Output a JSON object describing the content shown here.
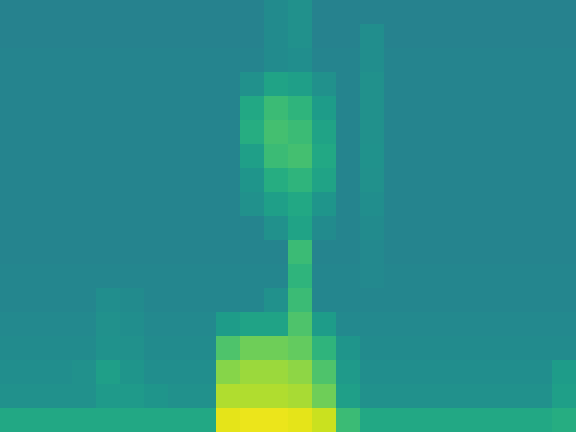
{
  "chart_data": {
    "type": "heatmap",
    "color": "viridis",
    "tick_labels": false,
    "zlim": [
      0,
      10
    ],
    "z": [
      [
        4.4,
        4.4,
        4.4,
        4.4,
        4.4,
        4.4,
        4.4,
        4.4,
        4.4,
        4.4,
        4.4,
        4.8,
        5.0,
        4.4,
        4.4,
        4.4,
        4.4,
        4.4,
        4.4,
        4.4,
        4.4,
        4.4,
        4.4,
        4.4
      ],
      [
        4.4,
        4.4,
        4.4,
        4.4,
        4.4,
        4.4,
        4.4,
        4.4,
        4.4,
        4.4,
        4.4,
        4.8,
        5.0,
        4.4,
        4.4,
        4.9,
        4.4,
        4.4,
        4.4,
        4.4,
        4.4,
        4.4,
        4.4,
        4.4
      ],
      [
        4.5,
        4.5,
        4.5,
        4.5,
        4.5,
        4.5,
        4.5,
        4.5,
        4.5,
        4.5,
        4.5,
        4.8,
        4.9,
        4.5,
        4.5,
        4.9,
        4.5,
        4.5,
        4.5,
        4.5,
        4.5,
        4.5,
        4.5,
        4.5
      ],
      [
        4.5,
        4.5,
        4.5,
        4.5,
        4.5,
        4.5,
        4.5,
        4.5,
        4.5,
        4.5,
        5.0,
        5.8,
        5.6,
        5.0,
        4.5,
        5.0,
        4.5,
        4.5,
        4.5,
        4.5,
        4.5,
        4.5,
        4.5,
        4.5
      ],
      [
        4.5,
        4.5,
        4.5,
        4.5,
        4.5,
        4.5,
        4.5,
        4.5,
        4.5,
        4.5,
        6.0,
        6.8,
        6.5,
        5.5,
        4.5,
        5.0,
        4.5,
        4.5,
        4.5,
        4.5,
        4.5,
        4.5,
        4.5,
        4.5
      ],
      [
        4.5,
        4.5,
        4.5,
        4.5,
        4.5,
        4.5,
        4.5,
        4.5,
        4.5,
        4.5,
        6.2,
        7.0,
        6.8,
        5.8,
        4.5,
        5.0,
        4.5,
        4.5,
        4.5,
        4.5,
        4.5,
        4.5,
        4.5,
        4.5
      ],
      [
        4.5,
        4.5,
        4.5,
        4.5,
        4.5,
        4.5,
        4.5,
        4.5,
        4.5,
        4.5,
        5.6,
        6.8,
        7.0,
        6.0,
        4.5,
        5.1,
        4.5,
        4.5,
        4.5,
        4.5,
        4.5,
        4.5,
        4.5,
        4.5
      ],
      [
        4.5,
        4.5,
        4.5,
        4.5,
        4.5,
        4.5,
        4.5,
        4.5,
        4.5,
        4.5,
        5.2,
        6.2,
        6.5,
        5.8,
        4.5,
        5.0,
        4.5,
        4.5,
        4.5,
        4.5,
        4.5,
        4.5,
        4.5,
        4.5
      ],
      [
        4.5,
        4.5,
        4.5,
        4.5,
        4.5,
        4.5,
        4.5,
        4.5,
        4.5,
        4.5,
        5.0,
        5.6,
        6.0,
        5.2,
        4.5,
        4.9,
        4.5,
        4.5,
        4.5,
        4.5,
        4.5,
        4.5,
        4.5,
        4.5
      ],
      [
        4.5,
        4.5,
        4.5,
        4.5,
        4.5,
        4.5,
        4.5,
        4.5,
        4.5,
        4.5,
        4.5,
        5.0,
        5.8,
        4.8,
        4.5,
        4.8,
        4.5,
        4.5,
        4.5,
        4.5,
        4.5,
        4.5,
        4.5,
        4.5
      ],
      [
        4.5,
        4.5,
        4.5,
        4.5,
        4.5,
        4.5,
        4.5,
        4.5,
        4.5,
        4.5,
        4.5,
        4.5,
        6.8,
        4.5,
        4.5,
        4.7,
        4.5,
        4.5,
        4.5,
        4.5,
        4.5,
        4.5,
        4.5,
        4.5
      ],
      [
        4.6,
        4.6,
        4.6,
        4.6,
        4.6,
        4.6,
        4.6,
        4.6,
        4.6,
        4.6,
        4.6,
        4.6,
        6.5,
        4.6,
        4.6,
        4.7,
        4.6,
        4.6,
        4.6,
        4.6,
        4.6,
        4.6,
        4.6,
        4.6
      ],
      [
        4.6,
        4.6,
        4.6,
        4.6,
        4.9,
        4.8,
        4.6,
        4.6,
        4.6,
        4.6,
        4.6,
        5.0,
        6.8,
        4.6,
        4.6,
        4.6,
        4.6,
        4.6,
        4.6,
        4.6,
        4.6,
        4.6,
        4.6,
        4.6
      ],
      [
        4.7,
        4.7,
        4.7,
        4.7,
        5.0,
        4.9,
        4.7,
        4.7,
        4.7,
        5.5,
        5.8,
        5.8,
        7.2,
        5.5,
        4.7,
        4.7,
        4.7,
        4.7,
        4.7,
        4.7,
        4.7,
        4.7,
        4.7,
        4.7
      ],
      [
        4.8,
        4.8,
        4.8,
        4.8,
        5.1,
        5.0,
        4.8,
        4.8,
        4.8,
        7.2,
        7.8,
        7.8,
        7.6,
        6.5,
        5.2,
        4.8,
        4.8,
        4.8,
        4.8,
        4.8,
        4.8,
        4.8,
        4.8,
        4.8
      ],
      [
        4.9,
        4.9,
        4.9,
        5.0,
        5.6,
        5.2,
        4.9,
        4.9,
        4.9,
        8.2,
        8.5,
        8.5,
        8.3,
        7.2,
        5.4,
        4.9,
        4.9,
        4.9,
        4.9,
        4.9,
        4.9,
        4.9,
        4.9,
        5.5
      ],
      [
        5.0,
        5.0,
        5.0,
        5.0,
        5.4,
        5.4,
        5.2,
        5.0,
        5.0,
        8.8,
        8.8,
        8.8,
        8.7,
        7.8,
        5.6,
        5.0,
        5.0,
        5.0,
        5.0,
        5.0,
        5.0,
        5.0,
        5.0,
        5.6
      ],
      [
        6.0,
        6.0,
        6.0,
        6.0,
        6.0,
        6.0,
        6.0,
        6.0,
        6.0,
        9.6,
        9.7,
        9.7,
        9.6,
        9.2,
        6.8,
        6.0,
        6.0,
        6.0,
        6.0,
        6.0,
        6.0,
        6.0,
        6.0,
        6.2
      ]
    ]
  }
}
